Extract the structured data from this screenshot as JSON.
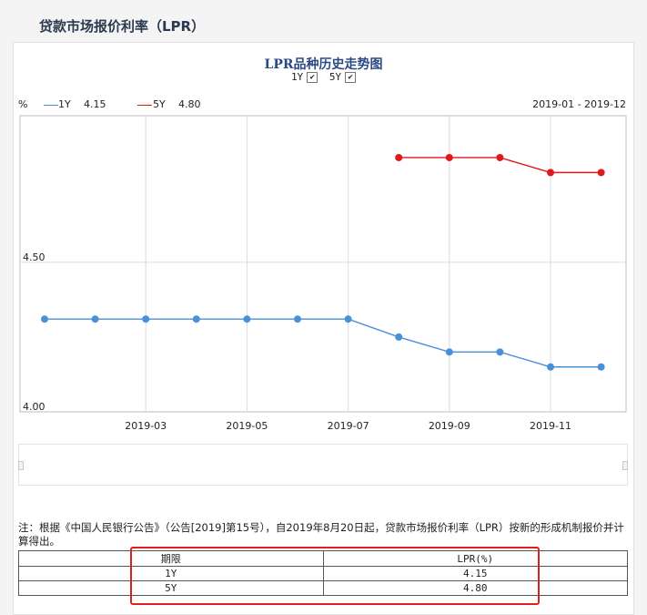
{
  "page": {
    "title": "贷款市场报价利率（LPR）"
  },
  "chart_header": {
    "title": "LPR品种历史走势图",
    "toggle_1y_label": "1Y",
    "toggle_5y_label": "5Y",
    "check_mark": "✔"
  },
  "legend": {
    "unit": "%",
    "items": [
      {
        "label": "1Y",
        "value": "4.15",
        "color": "#4a90d9"
      },
      {
        "label": "5Y",
        "value": "4.80",
        "color": "#e01818"
      }
    ],
    "date_range": "2019-01 - 2019-12"
  },
  "chart_data": {
    "type": "line",
    "x": [
      "2019-01",
      "2019-02",
      "2019-03",
      "2019-04",
      "2019-05",
      "2019-06",
      "2019-07",
      "2019-08",
      "2019-09",
      "2019-10",
      "2019-11",
      "2019-12"
    ],
    "x_tick_labels": [
      "2019-03",
      "2019-05",
      "2019-07",
      "2019-09",
      "2019-11"
    ],
    "y_tick_labels": [
      "4.00",
      "4.50"
    ],
    "ylim": [
      4.0,
      4.99
    ],
    "grid": true,
    "series": [
      {
        "name": "1Y",
        "color": "#4a90d9",
        "values": [
          4.31,
          4.31,
          4.31,
          4.31,
          4.31,
          4.31,
          4.31,
          4.25,
          4.2,
          4.2,
          4.15,
          4.15
        ]
      },
      {
        "name": "5Y",
        "color": "#e01818",
        "values": [
          null,
          null,
          null,
          null,
          null,
          null,
          null,
          4.85,
          4.85,
          4.85,
          4.8,
          4.8
        ]
      }
    ]
  },
  "note": {
    "text": "注：根据《中国人民银行公告》（公告[2019]第15号），自2019年8月20日起，贷款市场报价利率（LPR）按新的形成机制报价并计算得出。"
  },
  "table": {
    "headers": [
      "期限",
      "LPR(%)"
    ],
    "rows": [
      [
        "1Y",
        "4.15"
      ],
      [
        "5Y",
        "4.80"
      ]
    ]
  }
}
